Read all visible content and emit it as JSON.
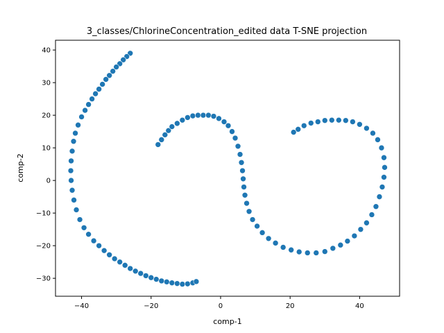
{
  "chart_data": {
    "type": "scatter",
    "title": "3_classes/ChlorineConcentration_edited data T-SNE projection",
    "xlabel": "comp-1",
    "ylabel": "comp-2",
    "xlim": [
      -47.5,
      51.5
    ],
    "ylim": [
      -35.5,
      43.0
    ],
    "xticks": [
      -40,
      -20,
      0,
      20,
      40
    ],
    "yticks": [
      -30,
      -20,
      -10,
      0,
      10,
      20,
      30,
      40
    ],
    "grid": false,
    "legend": "none",
    "marker_color": "#1f77b4",
    "marker_edge": "#ffffff",
    "series": [
      {
        "points": [
          [
            -26.0,
            39.0
          ],
          [
            -27.0,
            38.0
          ],
          [
            -28.0,
            37.0
          ],
          [
            -29.0,
            35.8
          ],
          [
            -30.0,
            34.8
          ],
          [
            -31.0,
            33.5
          ],
          [
            -32.0,
            32.2
          ],
          [
            -33.0,
            31.0
          ],
          [
            -34.0,
            29.5
          ],
          [
            -35.0,
            28.0
          ],
          [
            -36.0,
            26.6
          ],
          [
            -37.0,
            25.0
          ],
          [
            -38.0,
            23.3
          ],
          [
            -39.0,
            21.5
          ],
          [
            -40.0,
            19.5
          ],
          [
            -41.0,
            17.0
          ],
          [
            -41.8,
            14.5
          ],
          [
            -42.3,
            12.0
          ],
          [
            -42.7,
            9.0
          ],
          [
            -43.0,
            6.0
          ],
          [
            -43.1,
            3.0
          ],
          [
            -43.0,
            0.0
          ],
          [
            -42.7,
            -3.0
          ],
          [
            -42.2,
            -6.0
          ],
          [
            -41.5,
            -9.0
          ],
          [
            -40.5,
            -12.0
          ],
          [
            -39.3,
            -14.5
          ],
          [
            -38.0,
            -16.5
          ],
          [
            -36.5,
            -18.5
          ],
          [
            -35.0,
            -20.0
          ],
          [
            -33.5,
            -21.5
          ],
          [
            -32.0,
            -22.8
          ],
          [
            -30.5,
            -24.0
          ],
          [
            -29.0,
            -25.0
          ],
          [
            -27.5,
            -26.0
          ],
          [
            -26.0,
            -27.0
          ],
          [
            -24.5,
            -27.8
          ],
          [
            -23.0,
            -28.5
          ],
          [
            -21.5,
            -29.2
          ],
          [
            -20.0,
            -29.8
          ],
          [
            -18.5,
            -30.3
          ],
          [
            -17.0,
            -30.8
          ],
          [
            -15.5,
            -31.1
          ],
          [
            -14.0,
            -31.4
          ],
          [
            -12.5,
            -31.6
          ],
          [
            -11.0,
            -31.8
          ],
          [
            -9.5,
            -31.7
          ],
          [
            -8.0,
            -31.4
          ],
          [
            -7.0,
            -31.0
          ]
        ]
      },
      {
        "points": [
          [
            -18.0,
            11.0
          ],
          [
            -17.0,
            12.5
          ],
          [
            -16.0,
            14.0
          ],
          [
            -15.0,
            15.3
          ],
          [
            -14.0,
            16.5
          ],
          [
            -12.5,
            17.5
          ],
          [
            -11.0,
            18.5
          ],
          [
            -9.5,
            19.3
          ],
          [
            -8.0,
            19.8
          ],
          [
            -6.5,
            20.0
          ],
          [
            -5.0,
            20.0
          ],
          [
            -3.5,
            20.0
          ],
          [
            -2.0,
            19.7
          ],
          [
            -0.5,
            19.0
          ],
          [
            1.0,
            18.0
          ],
          [
            2.2,
            16.8
          ],
          [
            3.3,
            15.0
          ],
          [
            4.2,
            13.0
          ],
          [
            5.0,
            10.5
          ],
          [
            5.6,
            8.0
          ],
          [
            6.0,
            5.5
          ],
          [
            6.3,
            3.0
          ],
          [
            6.5,
            0.5
          ],
          [
            6.7,
            -2.0
          ],
          [
            7.0,
            -4.5
          ],
          [
            7.5,
            -7.0
          ],
          [
            8.2,
            -9.5
          ],
          [
            9.2,
            -12.0
          ],
          [
            10.5,
            -14.0
          ],
          [
            12.0,
            -16.0
          ],
          [
            13.8,
            -17.8
          ],
          [
            15.8,
            -19.2
          ],
          [
            18.0,
            -20.5
          ],
          [
            20.3,
            -21.3
          ],
          [
            22.6,
            -21.9
          ],
          [
            25.0,
            -22.2
          ],
          [
            27.5,
            -22.2
          ],
          [
            30.0,
            -21.8
          ],
          [
            32.3,
            -20.8
          ],
          [
            34.5,
            -19.8
          ],
          [
            36.5,
            -18.6
          ],
          [
            38.5,
            -17.0
          ],
          [
            40.3,
            -15.0
          ],
          [
            42.0,
            -13.0
          ],
          [
            43.5,
            -10.5
          ],
          [
            44.7,
            -8.0
          ],
          [
            45.7,
            -5.0
          ],
          [
            46.5,
            -2.0
          ],
          [
            47.0,
            1.0
          ],
          [
            47.2,
            4.0
          ],
          [
            47.0,
            7.0
          ],
          [
            46.3,
            10.0
          ],
          [
            45.2,
            12.5
          ],
          [
            43.8,
            14.5
          ],
          [
            42.0,
            16.0
          ],
          [
            40.0,
            17.2
          ],
          [
            38.0,
            18.0
          ],
          [
            36.0,
            18.4
          ],
          [
            34.0,
            18.5
          ],
          [
            32.0,
            18.5
          ],
          [
            30.0,
            18.4
          ],
          [
            28.0,
            18.0
          ],
          [
            26.0,
            17.6
          ],
          [
            24.0,
            16.8
          ],
          [
            22.3,
            15.7
          ],
          [
            21.0,
            14.8
          ]
        ]
      }
    ]
  }
}
